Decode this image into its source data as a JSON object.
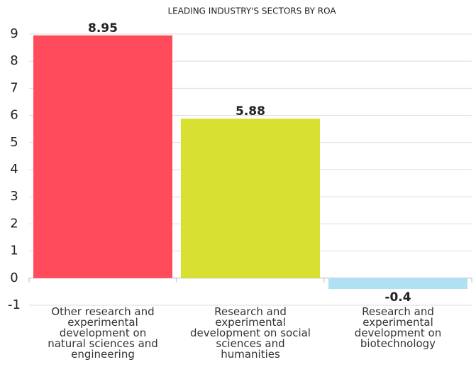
{
  "chart_data": {
    "type": "bar",
    "title": "LEADING INDUSTRY'S SECTORS BY ROA",
    "categories": [
      "Other research and experimental development on natural sciences and engineering",
      "Research and experimental development on social sciences and humanities",
      "Research and experimental development on biotechnology"
    ],
    "values": [
      8.95,
      5.88,
      -0.4
    ],
    "colors": [
      "#ff4b5c",
      "#d8e032",
      "#aee1f3"
    ],
    "ylim": [
      -1,
      9
    ],
    "yticks": [
      -1,
      0,
      1,
      2,
      3,
      4,
      5,
      6,
      7,
      8,
      9
    ],
    "grid": true
  }
}
